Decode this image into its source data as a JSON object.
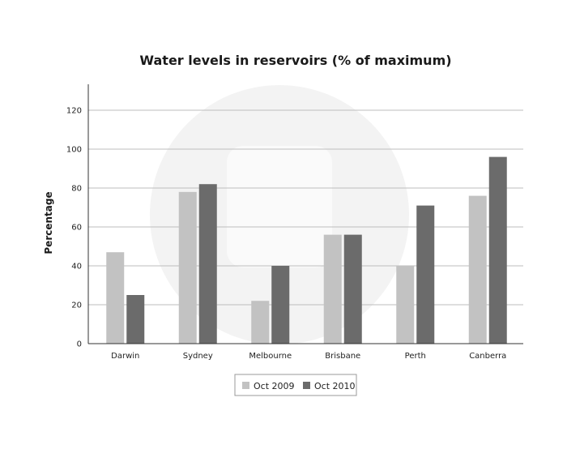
{
  "chart_data": {
    "type": "bar",
    "title": "Water levels in reservoirs (% of maximum)",
    "xlabel": "",
    "ylabel": "Percentage",
    "ylim": [
      0,
      130
    ],
    "yticks": [
      0,
      20,
      40,
      60,
      80,
      100,
      120
    ],
    "grid": true,
    "legend_position": "bottom",
    "categories": [
      "Darwin",
      "Sydney",
      "Melbourne",
      "Brisbane",
      "Perth",
      "Canberra"
    ],
    "series": [
      {
        "name": "Oct 2009",
        "color": "#c2c2c2",
        "values": [
          47,
          78,
          22,
          56,
          40,
          76
        ]
      },
      {
        "name": "Oct 2010",
        "color": "#6b6b6b",
        "values": [
          25,
          82,
          40,
          56,
          71,
          96
        ]
      }
    ]
  }
}
